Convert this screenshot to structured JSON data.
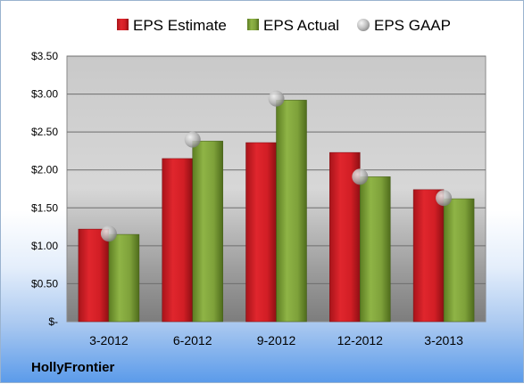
{
  "company_label": "HollyFrontier",
  "colors": {
    "estimate": "#d9232a",
    "actual": "#7fa33b",
    "gaap": "#b9b9b9"
  },
  "chart_data": {
    "type": "bar",
    "categories": [
      "3-2012",
      "6-2012",
      "9-2012",
      "12-2012",
      "3-2013"
    ],
    "series": [
      {
        "name": "EPS Estimate",
        "kind": "bar",
        "values": [
          1.22,
          2.15,
          2.36,
          2.23,
          1.74
        ]
      },
      {
        "name": "EPS Actual",
        "kind": "bar",
        "values": [
          1.15,
          2.38,
          2.92,
          1.91,
          1.62
        ]
      },
      {
        "name": "EPS GAAP",
        "kind": "marker",
        "values": [
          1.16,
          2.4,
          2.94,
          1.91,
          1.63
        ]
      }
    ],
    "y_ticks": [
      "$-",
      "$0.50",
      "$1.00",
      "$1.50",
      "$2.00",
      "$2.50",
      "$3.00",
      "$3.50"
    ],
    "ylim": [
      0,
      3.5
    ],
    "grid": true,
    "legend": "top",
    "title": "",
    "xlabel": "",
    "ylabel": ""
  }
}
